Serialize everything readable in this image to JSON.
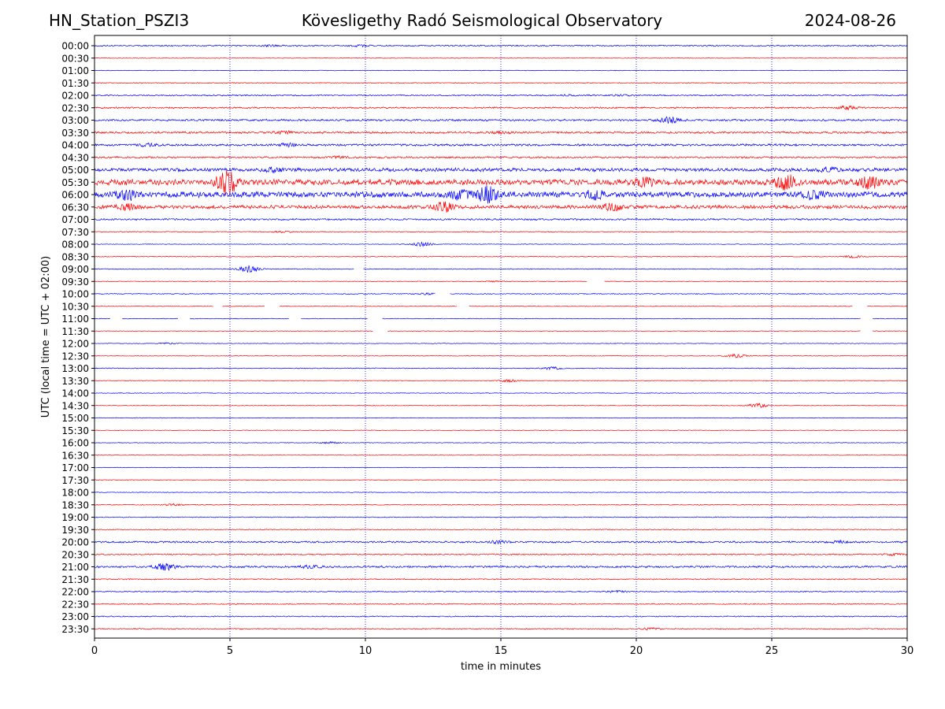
{
  "header": {
    "station": "HN_Station_PSZI3",
    "observatory": "Kövesligethy Radó Seismological Observatory",
    "date": "2024-08-26"
  },
  "chart_data": {
    "type": "line",
    "chart_kind": "helicorder",
    "xlabel": "time in minutes",
    "ylabel": "UTC (local time = UTC + 02:00)",
    "xlim": [
      0,
      30
    ],
    "x_ticks": [
      0,
      5,
      10,
      15,
      20,
      25,
      30
    ],
    "grid_x": true,
    "trace_colors": [
      "#0000ff",
      "#ff0000"
    ],
    "traces": [
      {
        "label": "00:00",
        "level": 0.6,
        "events": [
          [
            6.5,
            0.8
          ],
          [
            9.8,
            0.9
          ]
        ]
      },
      {
        "label": "00:30",
        "level": 0.3,
        "events": []
      },
      {
        "label": "01:00",
        "level": 0.3,
        "events": []
      },
      {
        "label": "01:30",
        "level": 0.4,
        "events": []
      },
      {
        "label": "02:00",
        "level": 0.6,
        "events": [
          [
            17.5,
            0.7
          ],
          [
            19.5,
            0.8
          ]
        ]
      },
      {
        "label": "02:30",
        "level": 0.7,
        "events": [
          [
            27.8,
            1.8
          ]
        ]
      },
      {
        "label": "03:00",
        "level": 0.9,
        "events": [
          [
            21.2,
            3.5
          ]
        ]
      },
      {
        "label": "03:30",
        "level": 0.9,
        "events": [
          [
            7.0,
            1.5
          ],
          [
            15.0,
            1.2
          ]
        ]
      },
      {
        "label": "04:00",
        "level": 1.0,
        "events": [
          [
            2.0,
            1.5
          ],
          [
            7.1,
            1.5
          ]
        ]
      },
      {
        "label": "04:30",
        "level": 0.8,
        "events": [
          [
            9.0,
            1.0
          ]
        ]
      },
      {
        "label": "05:00",
        "level": 1.6,
        "events": [
          [
            6.6,
            2.0
          ],
          [
            27.1,
            2.0
          ]
        ]
      },
      {
        "label": "05:30",
        "level": 2.6,
        "events": [
          [
            4.9,
            14.0
          ],
          [
            20.3,
            5.0
          ],
          [
            25.5,
            8.0
          ],
          [
            28.6,
            7.0
          ]
        ]
      },
      {
        "label": "06:00",
        "level": 2.6,
        "events": [
          [
            1.2,
            5.0
          ],
          [
            13.5,
            5.0
          ],
          [
            14.5,
            9.0
          ],
          [
            18.5,
            4.0
          ],
          [
            26.5,
            4.0
          ]
        ]
      },
      {
        "label": "06:30",
        "level": 1.6,
        "events": [
          [
            1.2,
            3.0
          ],
          [
            12.9,
            6.0
          ],
          [
            19.1,
            4.0
          ]
        ]
      },
      {
        "label": "07:00",
        "level": 0.8,
        "events": []
      },
      {
        "label": "07:30",
        "level": 0.4,
        "events": [
          [
            7.0,
            0.8
          ]
        ]
      },
      {
        "label": "08:00",
        "level": 0.3,
        "events": [
          [
            12.1,
            2.5
          ]
        ]
      },
      {
        "label": "08:30",
        "level": 0.4,
        "events": [
          [
            28.0,
            1.2
          ]
        ]
      },
      {
        "label": "09:00",
        "level": 0.4,
        "events": [
          [
            5.7,
            4.0
          ]
        ]
      },
      {
        "label": "09:30",
        "level": 0.3,
        "events": [
          [
            14.8,
            0.6
          ]
        ]
      },
      {
        "label": "10:00",
        "level": 0.4,
        "events": [
          [
            12.3,
            1.0
          ]
        ]
      },
      {
        "label": "10:30",
        "level": 0.3,
        "events": []
      },
      {
        "label": "11:00",
        "level": 0.3,
        "events": []
      },
      {
        "label": "11:30",
        "level": 0.3,
        "events": []
      },
      {
        "label": "12:00",
        "level": 0.3,
        "events": [
          [
            2.7,
            0.8
          ]
        ]
      },
      {
        "label": "12:30",
        "level": 0.3,
        "events": [
          [
            23.7,
            2.0
          ]
        ]
      },
      {
        "label": "13:00",
        "level": 0.4,
        "events": [
          [
            16.9,
            1.5
          ]
        ]
      },
      {
        "label": "13:30",
        "level": 0.3,
        "events": [
          [
            15.3,
            1.5
          ]
        ]
      },
      {
        "label": "14:00",
        "level": 0.3,
        "events": []
      },
      {
        "label": "14:30",
        "level": 0.3,
        "events": [
          [
            24.5,
            2.5
          ]
        ]
      },
      {
        "label": "15:00",
        "level": 0.3,
        "events": []
      },
      {
        "label": "15:30",
        "level": 0.3,
        "events": []
      },
      {
        "label": "16:00",
        "level": 0.3,
        "events": [
          [
            8.7,
            1.0
          ]
        ]
      },
      {
        "label": "16:30",
        "level": 0.3,
        "events": []
      },
      {
        "label": "17:00",
        "level": 0.3,
        "events": []
      },
      {
        "label": "17:30",
        "level": 0.3,
        "events": []
      },
      {
        "label": "18:00",
        "level": 0.3,
        "events": []
      },
      {
        "label": "18:30",
        "level": 0.4,
        "events": [
          [
            2.9,
            1.0
          ]
        ]
      },
      {
        "label": "19:00",
        "level": 0.4,
        "events": []
      },
      {
        "label": "19:30",
        "level": 0.4,
        "events": []
      },
      {
        "label": "20:00",
        "level": 0.8,
        "events": [
          [
            14.9,
            1.5
          ],
          [
            27.5,
            1.0
          ]
        ]
      },
      {
        "label": "20:30",
        "level": 0.6,
        "events": [
          [
            29.5,
            1.0
          ]
        ]
      },
      {
        "label": "21:00",
        "level": 0.9,
        "events": [
          [
            2.6,
            4.0
          ],
          [
            8.0,
            1.5
          ]
        ]
      },
      {
        "label": "21:30",
        "level": 0.5,
        "events": []
      },
      {
        "label": "22:00",
        "level": 0.5,
        "events": [
          [
            19.3,
            1.0
          ]
        ]
      },
      {
        "label": "22:30",
        "level": 0.5,
        "events": []
      },
      {
        "label": "23:00",
        "level": 0.5,
        "events": []
      },
      {
        "label": "23:30",
        "level": 0.5,
        "events": [
          [
            20.5,
            1.0
          ]
        ]
      }
    ],
    "gaps": [
      {
        "trace": "09:00",
        "from": 9.6,
        "to": 9.9
      },
      {
        "trace": "09:30",
        "from": 18.2,
        "to": 18.8
      },
      {
        "trace": "10:00",
        "from": 12.6,
        "to": 13.1
      },
      {
        "trace": "10:30",
        "from": 4.4,
        "to": 4.7
      },
      {
        "trace": "10:30",
        "from": 6.3,
        "to": 6.8
      },
      {
        "trace": "10:30",
        "from": 13.4,
        "to": 13.8
      },
      {
        "trace": "10:30",
        "from": 28.0,
        "to": 28.5
      },
      {
        "trace": "11:00",
        "from": 0.6,
        "to": 1.0
      },
      {
        "trace": "11:00",
        "from": 3.1,
        "to": 3.5
      },
      {
        "trace": "11:00",
        "from": 7.2,
        "to": 7.6
      },
      {
        "trace": "11:00",
        "from": 10.1,
        "to": 10.6
      },
      {
        "trace": "11:00",
        "from": 28.3,
        "to": 28.7
      },
      {
        "trace": "11:30",
        "from": 10.3,
        "to": 10.8
      },
      {
        "trace": "11:30",
        "from": 28.3,
        "to": 28.7
      }
    ]
  }
}
